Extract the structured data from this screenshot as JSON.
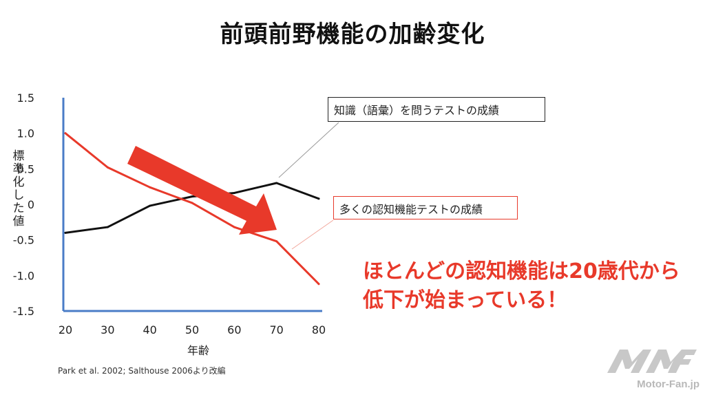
{
  "slide": {
    "title": "前頭前野機能の加齢変化",
    "callout_knowledge": "知識（語彙）を問うテストの成績",
    "callout_cognitive": "多くの認知機能テストの成績",
    "conclusion_line1": "ほとんどの認知機能は20歳代から",
    "conclusion_line2": "低下が始まっている！",
    "source": "Park et al. 2002; Salthouse 2006より改編",
    "watermark_text": "Motor-Fan.jp"
  },
  "colors": {
    "accent_red": "#e8392a",
    "line_black": "#111111",
    "axis_blue": "#4a7cc7",
    "logo_gray": "#c8c8c8"
  },
  "chart_data": {
    "type": "line",
    "title": "前頭前野機能の加齢変化",
    "xlabel": "年齢",
    "ylabel": "標準化した値",
    "x": [
      20,
      30,
      40,
      50,
      60,
      70,
      80
    ],
    "x_tick_labels": [
      "20",
      "30",
      "40",
      "50",
      "60",
      "70",
      "80"
    ],
    "y_tick_labels": [
      "1.5",
      "1.0",
      "0.5",
      "0",
      "-0.5",
      "-1.0",
      "-1.5"
    ],
    "y_ticks": [
      1.5,
      1.0,
      0.5,
      0,
      -0.5,
      -1.0,
      -1.5
    ],
    "xlim": [
      20,
      80
    ],
    "ylim": [
      -1.5,
      1.5
    ],
    "grid": false,
    "series": [
      {
        "name": "知識（語彙）を問うテストの成績",
        "color": "#111111",
        "values": [
          -0.4,
          -0.32,
          -0.02,
          0.11,
          0.16,
          0.3,
          0.08
        ]
      },
      {
        "name": "多くの認知機能テストの成績",
        "color": "#e8392a",
        "values": [
          1.0,
          0.52,
          0.24,
          0.02,
          -0.32,
          -0.52,
          -1.12
        ]
      }
    ]
  }
}
